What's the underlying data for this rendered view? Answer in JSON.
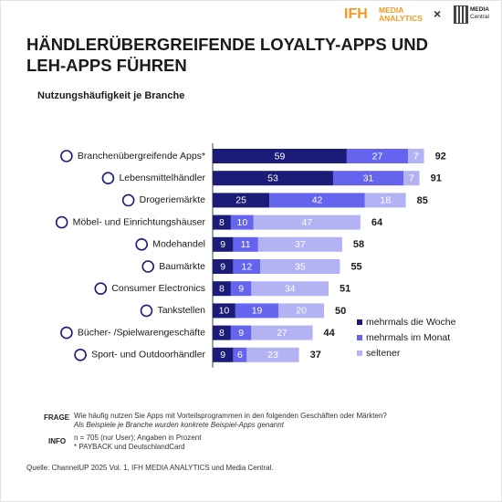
{
  "header": {
    "logo_ifh": "IFH",
    "logo_ifh_sub": "MEDIA ANALYTICS",
    "separator": "×",
    "logo_mc": "MEDIA",
    "logo_mc_sub": "Central"
  },
  "chart_data": {
    "type": "bar",
    "orientation": "horizontal",
    "stacked": true,
    "title": "HÄNDLERÜBERGREIFENDE LOYALTY-APPS UND LEH-APPS FÜHREN",
    "subtitle": "Nutzungshäufigkeit je Branche",
    "categories": [
      "Branchenübergreifende Apps*",
      "Lebensmittelhändler",
      "Drogeriemärkte",
      "Möbel- und Einrichtungshäuser",
      "Modehandel",
      "Baumärkte",
      "Consumer Electronics",
      "Tankstellen",
      "Bücher- /Spielwarengeschäfte",
      "Sport- und Outdoorhändler"
    ],
    "series": [
      {
        "name": "mehrmals die Woche",
        "color": "#1b1b78",
        "values": [
          59,
          53,
          25,
          8,
          9,
          9,
          8,
          10,
          8,
          9
        ]
      },
      {
        "name": "mehrmals im Monat",
        "color": "#6464ee",
        "values": [
          27,
          31,
          42,
          10,
          11,
          12,
          9,
          19,
          9,
          6
        ]
      },
      {
        "name": "seltener",
        "color": "#b3b3f3",
        "values": [
          7,
          7,
          18,
          47,
          37,
          35,
          34,
          20,
          27,
          23
        ]
      }
    ],
    "totals": [
      92,
      91,
      85,
      64,
      58,
      55,
      51,
      50,
      44,
      37
    ],
    "legend": "lower right"
  },
  "footer": {
    "frage_label": "FRAGE",
    "frage_text": "Wie häufig nutzen Sie Apps mit Vorteilsprogrammen in den folgenden Geschäften oder Märkten?",
    "frage_note": "Als Beispiele je Branche wurden konkrete Beispiel-Apps genannt",
    "info_label": "INFO",
    "info_text": "n = 705 (nur User); Angaben in Prozent",
    "info_note": "* PAYBACK und DeutschlandCard",
    "source": "Quelle: ChannelUP 2025 Vol. 1, IFH MEDIA ANALYTICS und Media Central."
  }
}
